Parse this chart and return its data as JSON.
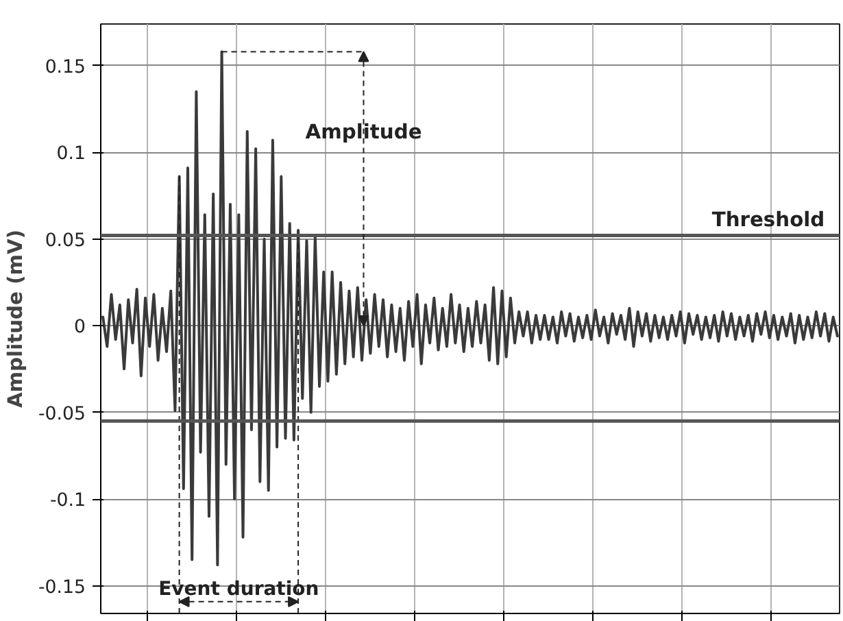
{
  "chart_data": {
    "type": "line",
    "ylabel": "Amplitude (mV)",
    "categories": [
      null,
      null,
      null,
      null,
      null,
      null,
      null,
      null,
      null,
      null,
      null,
      null,
      null,
      null,
      null,
      null,
      null,
      null,
      null,
      null,
      null,
      null,
      null,
      null,
      null,
      null,
      null,
      null,
      null,
      null,
      null,
      null,
      null,
      null,
      null,
      null,
      null,
      null,
      null,
      null,
      null,
      null,
      null,
      null,
      null,
      null,
      null,
      null,
      null,
      null,
      null,
      null,
      null,
      null,
      null,
      null,
      null,
      null,
      null,
      null,
      null,
      null,
      null,
      null,
      null,
      null,
      null,
      null,
      null,
      null,
      null,
      null,
      null,
      null,
      null,
      null,
      null,
      null,
      null,
      null,
      null,
      null,
      null,
      null,
      null,
      null,
      null,
      null,
      null,
      null,
      null,
      null,
      null,
      null,
      null,
      null,
      null,
      null,
      null,
      null,
      null,
      null,
      null,
      null,
      null,
      null,
      null,
      null,
      null,
      null,
      null,
      null,
      null,
      null,
      null,
      null,
      null,
      null,
      null,
      null,
      null,
      null,
      null,
      null,
      null,
      null,
      null,
      null,
      null,
      null,
      null,
      null,
      null,
      null,
      null,
      null,
      null,
      null,
      null,
      null,
      null,
      null,
      null,
      null,
      null,
      null,
      null,
      null,
      null,
      null,
      null,
      null,
      null,
      null,
      null,
      null,
      null,
      null,
      null,
      null,
      null,
      null,
      null,
      null,
      null,
      null,
      null,
      null,
      null,
      null,
      null,
      null,
      null,
      null
    ],
    "series": [
      {
        "color": "#3a3a3a",
        "values": [
          0.005,
          -0.012,
          0.018,
          -0.008,
          0.012,
          -0.025,
          0.015,
          -0.01,
          0.021,
          -0.029,
          0.016,
          -0.012,
          0.018,
          -0.02,
          0.01,
          -0.015,
          0.02,
          -0.049,
          0.086,
          -0.094,
          0.091,
          -0.135,
          0.135,
          -0.073,
          0.064,
          -0.11,
          0.076,
          -0.138,
          0.158,
          -0.08,
          0.07,
          -0.1,
          0.064,
          -0.122,
          0.112,
          -0.06,
          0.102,
          -0.09,
          0.05,
          -0.095,
          0.107,
          -0.07,
          0.086,
          -0.065,
          0.059,
          -0.066,
          0.055,
          -0.042,
          0.049,
          -0.05,
          0.051,
          -0.035,
          0.031,
          -0.032,
          0.031,
          -0.028,
          0.025,
          -0.022,
          0.02,
          -0.018,
          0.022,
          -0.02,
          0.015,
          -0.016,
          0.018,
          -0.012,
          0.015,
          -0.018,
          0.012,
          -0.015,
          0.01,
          -0.02,
          0.014,
          -0.012,
          0.018,
          -0.022,
          0.012,
          -0.01,
          0.016,
          -0.014,
          0.01,
          -0.012,
          0.018,
          -0.01,
          0.012,
          -0.015,
          0.01,
          -0.012,
          0.014,
          -0.01,
          0.012,
          -0.02,
          0.022,
          -0.022,
          0.02,
          -0.018,
          0.016,
          -0.01,
          0.008,
          -0.006,
          0.008,
          -0.01,
          0.006,
          -0.008,
          0.006,
          -0.008,
          0.005,
          -0.01,
          0.008,
          -0.006,
          0.007,
          -0.009,
          0.005,
          -0.007,
          0.006,
          -0.008,
          0.009,
          -0.006,
          0.005,
          -0.01,
          0.007,
          -0.005,
          0.006,
          -0.008,
          0.01,
          -0.012,
          0.008,
          -0.006,
          0.007,
          -0.009,
          0.006,
          -0.007,
          0.005,
          -0.008,
          0.006,
          -0.006,
          0.008,
          -0.01,
          0.007,
          -0.005,
          0.006,
          -0.008,
          0.005,
          -0.007,
          0.006,
          -0.009,
          0.008,
          -0.006,
          0.007,
          -0.008,
          0.005,
          -0.006,
          0.006,
          -0.009,
          0.007,
          -0.005,
          0.008,
          -0.007,
          0.006,
          -0.008,
          0.005,
          -0.006,
          0.007,
          -0.01,
          0.006,
          -0.008,
          0.005,
          -0.007,
          0.008,
          -0.006,
          0.007,
          -0.009,
          0.005,
          -0.006
        ]
      }
    ],
    "ylim": [
      -0.166,
      0.174
    ],
    "yticks": [
      0.15,
      0.1,
      0.05,
      0,
      -0.05,
      -0.1,
      -0.15
    ],
    "grid": true,
    "ref_lines": [
      {
        "axis": "y",
        "value": 0.052,
        "label": "Threshold",
        "color": "#555555"
      },
      {
        "axis": "y",
        "value": -0.055,
        "label": null,
        "color": "#555555"
      }
    ],
    "annotations": [
      "Amplitude",
      "Event duration"
    ]
  }
}
